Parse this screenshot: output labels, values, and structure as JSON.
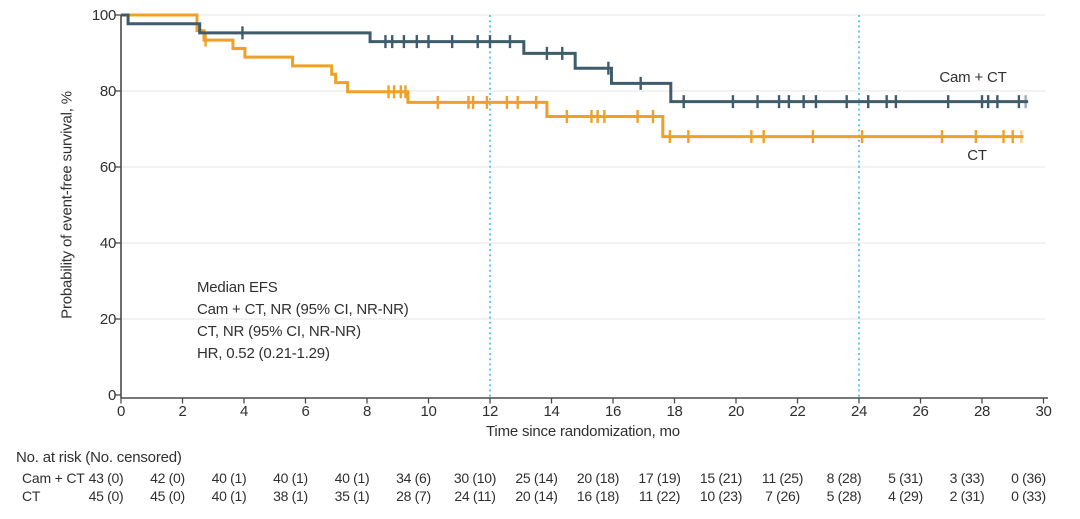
{
  "chart_data": {
    "type": "line",
    "subtype": "kaplan-meier-step",
    "title": "",
    "xlabel": "Time since randomization, mo",
    "ylabel": "Probability of event-free survival, %",
    "xlim": [
      0,
      30
    ],
    "ylim": [
      0,
      100
    ],
    "xticks": [
      0,
      2,
      4,
      6,
      8,
      10,
      12,
      14,
      16,
      18,
      20,
      22,
      24,
      26,
      28,
      30
    ],
    "yticks": [
      0,
      20,
      40,
      60,
      80,
      100
    ],
    "grid": "horizontal-light",
    "gridline_color": "#EAEAEA",
    "axis_color": "#4A4A4A",
    "text_color": "#303030",
    "reference_lines": {
      "x": [
        12,
        24
      ],
      "style": "dotted",
      "color": "#5EC5EA"
    },
    "annotation": [
      "Median EFS",
      "Cam + CT, NR (95% CI, NR-NR)",
      "CT, NR (95% CI, NR-NR)",
      "HR, 0.52 (0.21-1.29)"
    ],
    "series": [
      {
        "name": "Cam + CT",
        "color": "#3E5C6C",
        "steps": [
          [
            0,
            100
          ],
          [
            0.23,
            97.7
          ],
          [
            2.56,
            95.3
          ],
          [
            8.1,
            93.0
          ],
          [
            13.1,
            89.9
          ],
          [
            14.77,
            86.0
          ],
          [
            15.95,
            82.0
          ],
          [
            17.88,
            77.2
          ]
        ],
        "end": 29.5,
        "censors": [
          [
            3.95,
            95.3
          ],
          [
            8.6,
            93
          ],
          [
            8.82,
            93
          ],
          [
            9.2,
            93
          ],
          [
            9.62,
            93
          ],
          [
            10.0,
            93
          ],
          [
            10.77,
            93
          ],
          [
            11.6,
            93
          ],
          [
            12.0,
            93
          ],
          [
            12.65,
            93
          ],
          [
            13.85,
            89.9
          ],
          [
            14.35,
            89.9
          ],
          [
            15.85,
            86
          ],
          [
            16.9,
            82
          ],
          [
            18.3,
            77.2
          ],
          [
            19.9,
            77.2
          ],
          [
            20.7,
            77.2
          ],
          [
            21.4,
            77.2
          ],
          [
            21.72,
            77.2
          ],
          [
            22.2,
            77.2
          ],
          [
            22.6,
            77.2
          ],
          [
            23.6,
            77.2
          ],
          [
            24.3,
            77.2
          ],
          [
            24.9,
            77.2
          ],
          [
            25.2,
            77.2
          ],
          [
            26.9,
            77.2
          ],
          [
            28.0,
            77.2
          ],
          [
            28.2,
            77.2
          ],
          [
            28.5,
            77.2
          ],
          [
            29.2,
            77.2
          ],
          [
            29.42,
            77.2
          ]
        ]
      },
      {
        "name": "CT",
        "color": "#EFA125",
        "steps": [
          [
            0,
            100
          ],
          [
            2.47,
            95.9
          ],
          [
            2.7,
            93.4
          ],
          [
            3.64,
            91.2
          ],
          [
            4.03,
            88.9
          ],
          [
            5.58,
            86.6
          ],
          [
            6.85,
            84.4
          ],
          [
            6.98,
            82.2
          ],
          [
            7.37,
            79.8
          ],
          [
            9.33,
            77.0
          ],
          [
            13.85,
            73.3
          ],
          [
            17.62,
            68.0
          ]
        ],
        "end": 29.35,
        "censors": [
          [
            2.75,
            93.4
          ],
          [
            8.7,
            79.8
          ],
          [
            8.88,
            79.8
          ],
          [
            9.1,
            79.8
          ],
          [
            9.25,
            79.8
          ],
          [
            10.3,
            77.0
          ],
          [
            11.3,
            77.0
          ],
          [
            11.45,
            77.0
          ],
          [
            11.9,
            77.0
          ],
          [
            12.55,
            77.0
          ],
          [
            12.9,
            77.0
          ],
          [
            13.5,
            77.0
          ],
          [
            14.5,
            73.3
          ],
          [
            15.3,
            73.3
          ],
          [
            15.5,
            73.3
          ],
          [
            15.72,
            73.3
          ],
          [
            16.8,
            73.3
          ],
          [
            17.3,
            73.3
          ],
          [
            17.85,
            68.0
          ],
          [
            18.45,
            68.0
          ],
          [
            20.5,
            68.0
          ],
          [
            20.9,
            68.0
          ],
          [
            22.5,
            68.0
          ],
          [
            24.1,
            68.0
          ],
          [
            26.7,
            68.0
          ],
          [
            27.8,
            68.0
          ],
          [
            28.7,
            68.0
          ],
          [
            29.0,
            68.0
          ],
          [
            29.28,
            68.0
          ]
        ]
      }
    ]
  },
  "risk_table": {
    "header": "No. at risk (No. censored)",
    "rows": [
      {
        "label": "Cam + CT",
        "values": [
          "43 (0)",
          "42 (0)",
          "40 (1)",
          "40 (1)",
          "40 (1)",
          "34 (6)",
          "30 (10)",
          "25 (14)",
          "20 (18)",
          "17 (19)",
          "15 (21)",
          "11 (25)",
          "8 (28)",
          "5 (31)",
          "3 (33)",
          "0 (36)"
        ]
      },
      {
        "label": "CT",
        "values": [
          "45 (0)",
          "45 (0)",
          "40 (1)",
          "38 (1)",
          "35 (1)",
          "28 (7)",
          "24 (11)",
          "20 (14)",
          "16 (18)",
          "11 (22)",
          "10 (23)",
          "7 (26)",
          "5 (28)",
          "4 (29)",
          "2 (31)",
          "0 (33)"
        ]
      }
    ]
  }
}
